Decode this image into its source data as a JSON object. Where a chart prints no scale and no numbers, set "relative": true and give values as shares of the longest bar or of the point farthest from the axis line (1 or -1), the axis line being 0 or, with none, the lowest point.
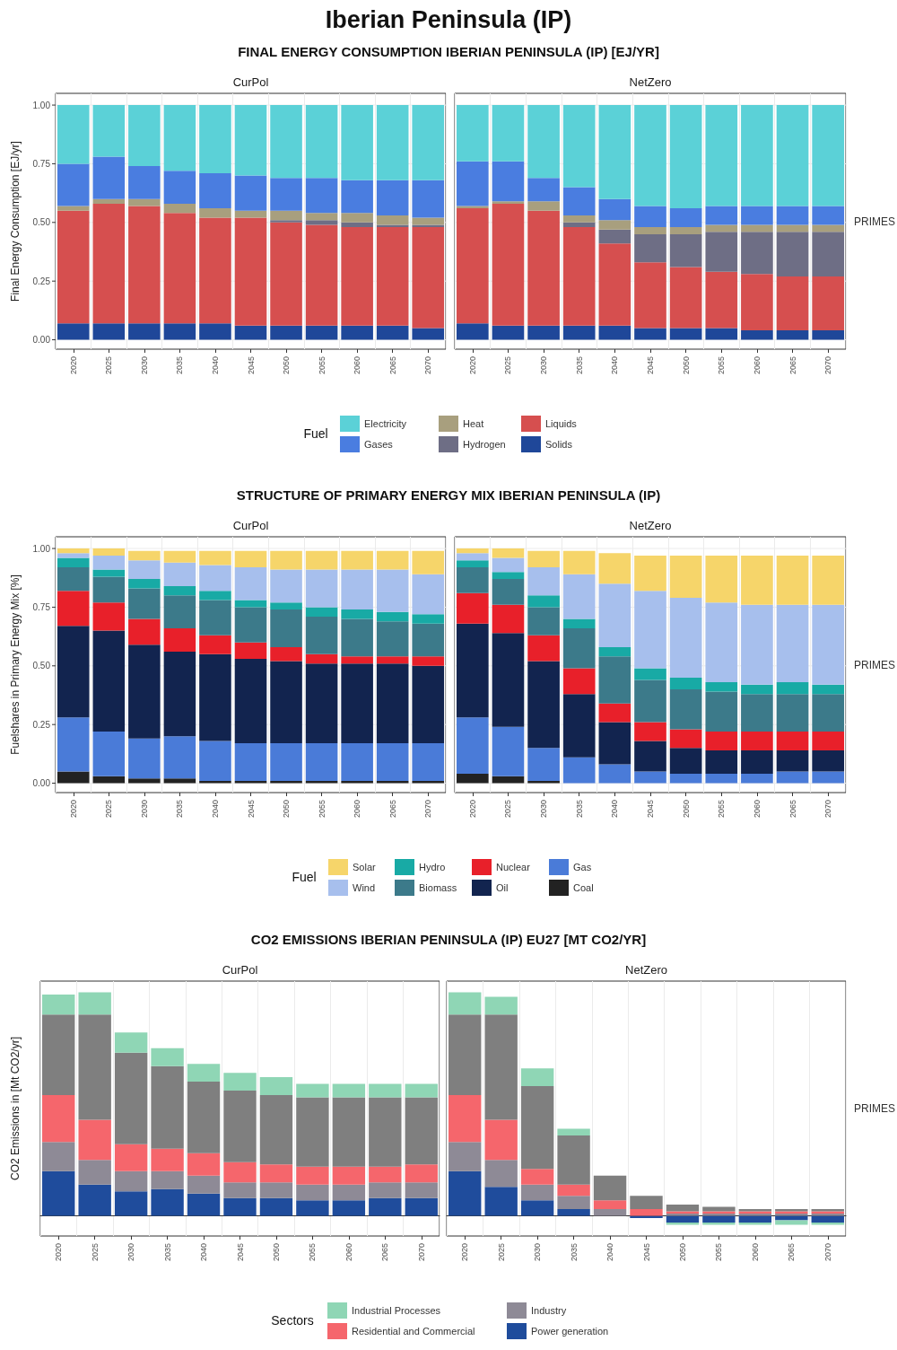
{
  "chart_data": [
    {
      "type": "bar",
      "title": "FINAL ENERGY CONSUMPTION IBERIAN PENINSULA (IP) [EJ/YR]",
      "subtitle": "CurPol",
      "ylabel": "Final Energy Consumption [EJ/yr]",
      "annotations": [
        "Iberian Peninsula (IP)"
      ],
      "categories": [
        "2020",
        "2025",
        "2030",
        "2035",
        "2040",
        "2045",
        "2050",
        "2055",
        "2060",
        "2065",
        "2070"
      ],
      "stacked": true,
      "ylim": [
        -0.04,
        1.05
      ],
      "yticks": [
        {
          "value": 0,
          "label": "0.00"
        },
        0.25,
        {
          "value": 0.5,
          "label": "0.50"
        },
        0.75,
        {
          "value": 1,
          "label": "1.00"
        }
      ],
      "grid": true,
      "legend": "bottom",
      "legend_title": "Fuel",
      "series": [
        {
          "name": "Solids",
          "color": "#1f4799",
          "values": [
            0.07,
            0.07,
            0.07,
            0.07,
            0.07,
            0.06,
            0.06,
            0.06,
            0.06,
            0.06,
            0.05
          ]
        },
        {
          "name": "Liquids",
          "color": "#d64f4f",
          "values": [
            0.48,
            0.51,
            0.5,
            0.47,
            0.45,
            0.46,
            0.44,
            0.43,
            0.42,
            0.42,
            0.43
          ]
        },
        {
          "name": "Hydrogen",
          "color": "#6e6e85",
          "values": [
            0,
            0,
            0,
            0,
            0,
            0,
            0.01,
            0.02,
            0.02,
            0.01,
            0.01
          ]
        },
        {
          "name": "Heat",
          "color": "#a89f7e",
          "values": [
            0.02,
            0.02,
            0.03,
            0.04,
            0.04,
            0.03,
            0.04,
            0.03,
            0.04,
            0.04,
            0.03
          ]
        },
        {
          "name": "Gases",
          "color": "#4a7de0",
          "values": [
            0.18,
            0.18,
            0.14,
            0.14,
            0.15,
            0.15,
            0.14,
            0.15,
            0.14,
            0.15,
            0.16
          ]
        },
        {
          "name": "Electricity",
          "color": "#5bd1d7",
          "values": [
            0.25,
            0.22,
            0.26,
            0.28,
            0.29,
            0.3,
            0.31,
            0.31,
            0.32,
            0.32,
            0.32
          ]
        }
      ]
    },
    {
      "type": "bar",
      "subtitle": "NetZero",
      "annotations": [
        "PRIMES"
      ],
      "categories": [
        "2020",
        "2025",
        "2030",
        "2035",
        "2040",
        "2045",
        "2050",
        "2055",
        "2060",
        "2065",
        "2070"
      ],
      "stacked": true,
      "ylim": [
        -0.04,
        1.05
      ],
      "yticks": [
        0,
        0.25,
        0.5,
        0.75,
        1
      ],
      "grid": true,
      "tick_labels": "x",
      "series": [
        {
          "color": "#1f4799",
          "values": [
            0.07,
            0.06,
            0.06,
            0.06,
            0.06,
            0.05,
            0.05,
            0.05,
            0.04,
            0.04,
            0.04
          ]
        },
        {
          "color": "#d64f4f",
          "values": [
            0.49,
            0.52,
            0.49,
            0.42,
            0.35,
            0.28,
            0.26,
            0.24,
            0.24,
            0.23,
            0.23
          ]
        },
        {
          "color": "#6e6e85",
          "values": [
            0,
            0,
            0,
            0.02,
            0.06,
            0.12,
            0.14,
            0.17,
            0.18,
            0.19,
            0.19
          ]
        },
        {
          "color": "#a89f7e",
          "values": [
            0.01,
            0.01,
            0.04,
            0.03,
            0.04,
            0.03,
            0.03,
            0.03,
            0.03,
            0.03,
            0.03
          ]
        },
        {
          "color": "#4a7de0",
          "values": [
            0.19,
            0.17,
            0.1,
            0.12,
            0.09,
            0.09,
            0.08,
            0.08,
            0.08,
            0.08,
            0.08
          ]
        },
        {
          "color": "#5bd1d7",
          "values": [
            0.24,
            0.24,
            0.31,
            0.35,
            0.4,
            0.43,
            0.44,
            0.43,
            0.43,
            0.43,
            0.43
          ]
        }
      ]
    },
    {
      "type": "bar",
      "title": "STRUCTURE OF PRIMARY ENERGY MIX IBERIAN PENINSULA (IP)",
      "subtitle": "CurPol",
      "ylabel": "Fuelshares in Primary Energy Mix [%]",
      "categories": [
        "2020",
        "2025",
        "2030",
        "2035",
        "2040",
        "2045",
        "2050",
        "2055",
        "2060",
        "2065",
        "2070"
      ],
      "stacked": true,
      "ylim": [
        -0.04,
        1.05
      ],
      "yticks": [
        {
          "value": 0,
          "label": "0.00"
        },
        0.25,
        {
          "value": 0.5,
          "label": "0.50"
        },
        0.75,
        {
          "value": 1,
          "label": "1.00"
        }
      ],
      "grid": true,
      "legend": "bottom",
      "legend_title": "Fuel",
      "series": [
        {
          "name": "Coal",
          "color": "#222222",
          "values": [
            0.05,
            0.03,
            0.02,
            0.02,
            0.01,
            0.01,
            0.01,
            0.01,
            0.01,
            0.01,
            0.01
          ]
        },
        {
          "name": "Gas",
          "color": "#4a7bd8",
          "values": [
            0.23,
            0.19,
            0.17,
            0.18,
            0.17,
            0.16,
            0.16,
            0.16,
            0.16,
            0.16,
            0.16
          ]
        },
        {
          "name": "Oil",
          "color": "#12244f",
          "values": [
            0.39,
            0.43,
            0.4,
            0.36,
            0.37,
            0.36,
            0.35,
            0.34,
            0.34,
            0.34,
            0.33
          ]
        },
        {
          "name": "Nuclear",
          "color": "#e8202a",
          "values": [
            0.15,
            0.12,
            0.11,
            0.1,
            0.08,
            0.07,
            0.06,
            0.04,
            0.03,
            0.03,
            0.04
          ]
        },
        {
          "name": "Biomass",
          "color": "#3c7a8a",
          "values": [
            0.1,
            0.11,
            0.13,
            0.14,
            0.15,
            0.15,
            0.16,
            0.16,
            0.16,
            0.15,
            0.14
          ]
        },
        {
          "name": "Hydro",
          "color": "#18aaa5",
          "values": [
            0.04,
            0.03,
            0.04,
            0.04,
            0.04,
            0.03,
            0.03,
            0.04,
            0.04,
            0.04,
            0.04
          ]
        },
        {
          "name": "Wind",
          "color": "#a7bfed",
          "values": [
            0.02,
            0.06,
            0.08,
            0.1,
            0.11,
            0.14,
            0.14,
            0.16,
            0.17,
            0.18,
            0.17
          ]
        },
        {
          "name": "Solar",
          "color": "#f6d56a",
          "values": [
            0.02,
            0.03,
            0.04,
            0.05,
            0.06,
            0.07,
            0.08,
            0.08,
            0.08,
            0.08,
            0.1
          ]
        }
      ]
    },
    {
      "type": "bar",
      "subtitle": "NetZero",
      "annotations": [
        "PRIMES"
      ],
      "categories": [
        "2020",
        "2025",
        "2030",
        "2035",
        "2040",
        "2045",
        "2050",
        "2055",
        "2060",
        "2065",
        "2070"
      ],
      "stacked": true,
      "ylim": [
        -0.04,
        1.05
      ],
      "yticks": [
        0,
        0.25,
        0.5,
        0.75,
        1
      ],
      "grid": true,
      "tick_labels": "x",
      "series": [
        {
          "color": "#222222",
          "values": [
            0.04,
            0.03,
            0.01,
            0,
            0,
            0,
            0,
            0,
            0,
            0,
            0
          ]
        },
        {
          "color": "#4a7bd8",
          "values": [
            0.24,
            0.21,
            0.14,
            0.11,
            0.08,
            0.05,
            0.04,
            0.04,
            0.04,
            0.05,
            0.05
          ]
        },
        {
          "color": "#12244f",
          "values": [
            0.4,
            0.4,
            0.37,
            0.27,
            0.18,
            0.13,
            0.11,
            0.1,
            0.1,
            0.09,
            0.09
          ]
        },
        {
          "color": "#e8202a",
          "values": [
            0.13,
            0.12,
            0.11,
            0.11,
            0.08,
            0.08,
            0.08,
            0.08,
            0.08,
            0.08,
            0.08
          ]
        },
        {
          "color": "#3c7a8a",
          "values": [
            0.11,
            0.11,
            0.12,
            0.17,
            0.2,
            0.18,
            0.17,
            0.17,
            0.16,
            0.16,
            0.16
          ]
        },
        {
          "color": "#18aaa5",
          "values": [
            0.03,
            0.03,
            0.05,
            0.04,
            0.04,
            0.05,
            0.05,
            0.04,
            0.04,
            0.05,
            0.04
          ]
        },
        {
          "color": "#a7bfed",
          "values": [
            0.03,
            0.06,
            0.12,
            0.19,
            0.27,
            0.33,
            0.34,
            0.34,
            0.34,
            0.33,
            0.34
          ]
        },
        {
          "color": "#f6d56a",
          "values": [
            0.02,
            0.04,
            0.07,
            0.1,
            0.13,
            0.15,
            0.18,
            0.2,
            0.21,
            0.21,
            0.21
          ]
        }
      ]
    },
    {
      "type": "bar",
      "title": "CO2 EMISSIONS IBERIAN PENINSULA (IP) EU27 [MT CO2/YR]",
      "subtitle": "CurPol",
      "ylabel": "CO2 Emissions in [Mt CO2/yr]",
      "categories": [
        "2020",
        "2025",
        "2030",
        "2035",
        "2040",
        "2045",
        "2050",
        "2055",
        "2060",
        "2065",
        "2070"
      ],
      "stacked": true,
      "relative": true,
      "grid": "x",
      "legend": "bottom",
      "legend_title": "Sectors",
      "tick_labels": "x",
      "series": [
        {
          "name": "Power generation",
          "color": "#1f4c9c",
          "values": [
            0.2,
            0.14,
            0.11,
            0.12,
            0.1,
            0.08,
            0.08,
            0.07,
            0.07,
            0.08,
            0.08
          ]
        },
        {
          "name": "Industry",
          "color": "#8e8a96",
          "values": [
            0.13,
            0.11,
            0.09,
            0.08,
            0.08,
            0.07,
            0.07,
            0.07,
            0.07,
            0.07,
            0.07
          ]
        },
        {
          "name": "Residential and Commercial",
          "color": "#f5666c",
          "values": [
            0.21,
            0.18,
            0.12,
            0.1,
            0.1,
            0.09,
            0.08,
            0.08,
            0.08,
            0.07,
            0.08
          ]
        },
        {
          "color": "#7f7f7f",
          "values": [
            0.36,
            0.47,
            0.41,
            0.37,
            0.32,
            0.32,
            0.31,
            0.31,
            0.31,
            0.31,
            0.3
          ]
        },
        {
          "name": "Industrial Processes",
          "color": "#8fd6b5",
          "values": [
            0.09,
            0.1,
            0.09,
            0.08,
            0.08,
            0.08,
            0.08,
            0.06,
            0.06,
            0.06,
            0.06
          ]
        }
      ]
    },
    {
      "type": "bar",
      "subtitle": "NetZero",
      "annotations": [
        "PRIMES"
      ],
      "categories": [
        "2020",
        "2025",
        "2030",
        "2035",
        "2040",
        "2045",
        "2050",
        "2055",
        "2060",
        "2065",
        "2070"
      ],
      "stacked": true,
      "relative": true,
      "grid": "x",
      "tick_labels": "x",
      "series": [
        {
          "color": "#1f4c9c",
          "values": [
            0.2,
            0.13,
            0.07,
            0.03,
            0,
            -0.01,
            -0.03,
            -0.03,
            -0.03,
            -0.02,
            -0.03
          ]
        },
        {
          "color": "#8e8a96",
          "values": [
            0.13,
            0.12,
            0.07,
            0.06,
            0.03,
            0,
            0.01,
            0.01,
            0.01,
            0.01,
            0.01
          ]
        },
        {
          "color": "#f5666c",
          "values": [
            0.21,
            0.18,
            0.07,
            0.05,
            0.04,
            0.03,
            0.01,
            0.01,
            0.01,
            0.01,
            0.01
          ]
        },
        {
          "color": "#7f7f7f",
          "values": [
            0.36,
            0.47,
            0.37,
            0.22,
            0.11,
            0.06,
            0.03,
            0.02,
            0.01,
            0.01,
            0.01
          ]
        },
        {
          "color": "#8fd6b5",
          "values": [
            0.1,
            0.08,
            0.08,
            0.03,
            0,
            0,
            -0.01,
            -0.01,
            -0.01,
            -0.02,
            -0.01
          ]
        }
      ]
    }
  ]
}
